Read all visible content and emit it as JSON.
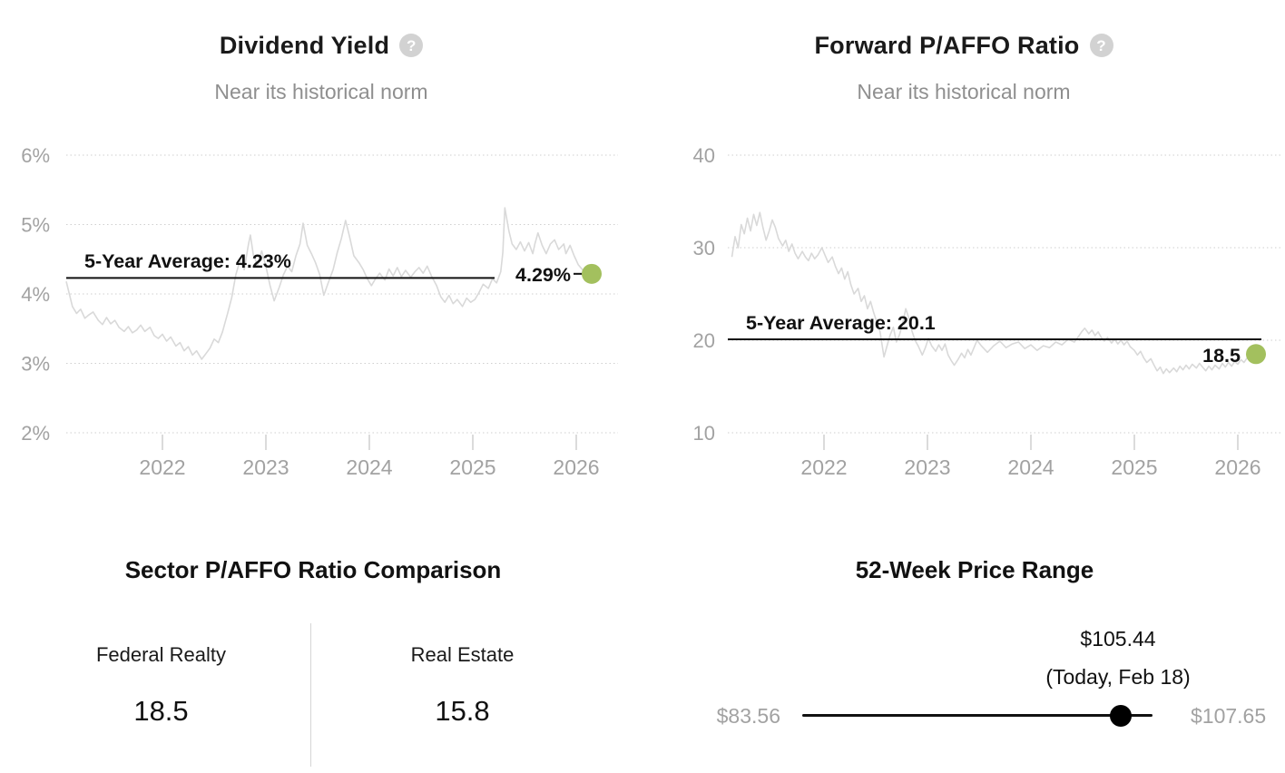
{
  "colors": {
    "accent_green": "#a3c05e",
    "series_gray": "#d9d9d9",
    "grid_gray": "#cfcfcf",
    "axis_label_gray": "#a2a2a2",
    "text_dark": "#1a1a1a"
  },
  "chart_data": [
    {
      "type": "line",
      "title": "Dividend Yield",
      "subtitle": "Near its historical norm",
      "help_glyph": "?",
      "ylim": [
        2,
        6
      ],
      "xlim": [
        2021.07,
        2026.13
      ],
      "grid": "dotted-horizontal",
      "legend": "none",
      "y_ticks": [
        {
          "value": 6,
          "label": "6%"
        },
        {
          "value": 5,
          "label": "5%"
        },
        {
          "value": 4,
          "label": "4%"
        },
        {
          "value": 3,
          "label": "3%"
        },
        {
          "value": 2,
          "label": "2%"
        }
      ],
      "x_ticks": [
        {
          "value": 2022,
          "label": "2022"
        },
        {
          "value": 2023,
          "label": "2023"
        },
        {
          "value": 2024,
          "label": "2024"
        },
        {
          "value": 2025,
          "label": "2025"
        },
        {
          "value": 2026,
          "label": "2026"
        }
      ],
      "average": {
        "value": 4.23,
        "label": "5-Year Average: 4.23%"
      },
      "current": {
        "value": 4.29,
        "label": "4.29%"
      },
      "line_color": "#d9d9d9",
      "dot_color": "#a3c05e",
      "x": [
        2021.07,
        2021.1,
        2021.13,
        2021.17,
        2021.21,
        2021.25,
        2021.29,
        2021.33,
        2021.38,
        2021.42,
        2021.46,
        2021.5,
        2021.54,
        2021.58,
        2021.63,
        2021.67,
        2021.71,
        2021.75,
        2021.79,
        2021.83,
        2021.88,
        2021.92,
        2021.96,
        2022.0,
        2022.04,
        2022.08,
        2022.13,
        2022.17,
        2022.21,
        2022.25,
        2022.29,
        2022.33,
        2022.38,
        2022.42,
        2022.46,
        2022.5,
        2022.54,
        2022.58,
        2022.63,
        2022.67,
        2022.71,
        2022.75,
        2022.79,
        2022.83,
        2022.85,
        2022.88,
        2022.92,
        2022.96,
        2023.0,
        2023.04,
        2023.08,
        2023.13,
        2023.17,
        2023.21,
        2023.25,
        2023.29,
        2023.33,
        2023.36,
        2023.4,
        2023.44,
        2023.48,
        2023.52,
        2023.56,
        2023.6,
        2023.65,
        2023.69,
        2023.73,
        2023.77,
        2023.81,
        2023.85,
        2023.9,
        2023.94,
        2023.98,
        2024.02,
        2024.06,
        2024.1,
        2024.15,
        2024.19,
        2024.23,
        2024.27,
        2024.31,
        2024.35,
        2024.4,
        2024.44,
        2024.48,
        2024.52,
        2024.56,
        2024.6,
        2024.65,
        2024.69,
        2024.73,
        2024.77,
        2024.81,
        2024.85,
        2024.9,
        2024.94,
        2024.98,
        2025.02,
        2025.06,
        2025.1,
        2025.15,
        2025.19,
        2025.23,
        2025.27,
        2025.29,
        2025.31,
        2025.35,
        2025.38,
        2025.42,
        2025.46,
        2025.5,
        2025.54,
        2025.58,
        2025.6,
        2025.63,
        2025.67,
        2025.71,
        2025.75,
        2025.79,
        2025.83,
        2025.88,
        2025.9,
        2025.94,
        2025.98,
        2026.02,
        2026.06,
        2026.1,
        2026.13
      ],
      "values": [
        4.18,
        4.0,
        3.82,
        3.72,
        3.78,
        3.65,
        3.7,
        3.74,
        3.62,
        3.56,
        3.66,
        3.57,
        3.62,
        3.52,
        3.46,
        3.53,
        3.44,
        3.48,
        3.55,
        3.46,
        3.52,
        3.4,
        3.36,
        3.42,
        3.32,
        3.38,
        3.25,
        3.3,
        3.18,
        3.24,
        3.12,
        3.18,
        3.06,
        3.14,
        3.22,
        3.35,
        3.3,
        3.45,
        3.72,
        3.95,
        4.28,
        4.48,
        4.35,
        4.7,
        4.85,
        4.55,
        4.42,
        4.62,
        4.4,
        4.12,
        3.9,
        4.1,
        4.28,
        4.4,
        4.32,
        4.55,
        4.72,
        5.02,
        4.7,
        4.58,
        4.45,
        4.28,
        3.98,
        4.15,
        4.35,
        4.6,
        4.8,
        5.06,
        4.82,
        4.55,
        4.45,
        4.35,
        4.22,
        4.12,
        4.22,
        4.3,
        4.2,
        4.36,
        4.26,
        4.38,
        4.25,
        4.34,
        4.24,
        4.32,
        4.38,
        4.3,
        4.4,
        4.26,
        4.12,
        3.96,
        3.88,
        3.98,
        3.86,
        3.92,
        3.82,
        3.94,
        3.88,
        3.92,
        4.02,
        4.14,
        4.08,
        4.22,
        4.16,
        4.32,
        4.6,
        5.24,
        4.9,
        4.72,
        4.64,
        4.75,
        4.62,
        4.74,
        4.58,
        4.72,
        4.88,
        4.7,
        4.58,
        4.72,
        4.78,
        4.64,
        4.72,
        4.58,
        4.7,
        4.55,
        4.42,
        4.35,
        4.3,
        4.29
      ]
    },
    {
      "type": "line",
      "title": "Forward P/AFFO Ratio",
      "subtitle": "Near its historical norm",
      "help_glyph": "?",
      "ylim": [
        10,
        40
      ],
      "xlim": [
        2021.11,
        2026.13
      ],
      "grid": "dotted-horizontal",
      "legend": "none",
      "y_ticks": [
        {
          "value": 40,
          "label": "40"
        },
        {
          "value": 30,
          "label": "30"
        },
        {
          "value": 20,
          "label": "20"
        },
        {
          "value": 10,
          "label": "10"
        }
      ],
      "x_ticks": [
        {
          "value": 2022,
          "label": "2022"
        },
        {
          "value": 2023,
          "label": "2023"
        },
        {
          "value": 2024,
          "label": "2024"
        },
        {
          "value": 2025,
          "label": "2025"
        },
        {
          "value": 2026,
          "label": "2026"
        }
      ],
      "average": {
        "value": 20.1,
        "label": "5-Year Average: 20.1"
      },
      "current": {
        "value": 18.5,
        "label": "18.5"
      },
      "line_color": "#d9d9d9",
      "dot_color": "#a3c05e",
      "x": [
        2021.11,
        2021.14,
        2021.17,
        2021.2,
        2021.23,
        2021.26,
        2021.29,
        2021.32,
        2021.35,
        2021.38,
        2021.41,
        2021.44,
        2021.47,
        2021.5,
        2021.53,
        2021.56,
        2021.6,
        2021.63,
        2021.66,
        2021.69,
        2021.72,
        2021.75,
        2021.79,
        2021.82,
        2021.85,
        2021.88,
        2021.91,
        2021.94,
        2021.98,
        2022.01,
        2022.04,
        2022.08,
        2022.11,
        2022.14,
        2022.17,
        2022.2,
        2022.23,
        2022.26,
        2022.29,
        2022.33,
        2022.36,
        2022.39,
        2022.42,
        2022.45,
        2022.48,
        2022.51,
        2022.54,
        2022.58,
        2022.61,
        2022.64,
        2022.67,
        2022.7,
        2022.73,
        2022.76,
        2022.79,
        2022.82,
        2022.85,
        2022.88,
        2022.91,
        2022.95,
        2022.98,
        2023.01,
        2023.04,
        2023.08,
        2023.11,
        2023.14,
        2023.17,
        2023.2,
        2023.23,
        2023.26,
        2023.3,
        2023.33,
        2023.36,
        2023.39,
        2023.42,
        2023.45,
        2023.48,
        2023.52,
        2023.58,
        2023.64,
        2023.7,
        2023.76,
        2023.82,
        2023.88,
        2023.94,
        2024.0,
        2024.06,
        2024.12,
        2024.18,
        2024.24,
        2024.3,
        2024.36,
        2024.42,
        2024.46,
        2024.49,
        2024.52,
        2024.56,
        2024.59,
        2024.62,
        2024.65,
        2024.68,
        2024.71,
        2024.74,
        2024.78,
        2024.81,
        2024.84,
        2024.87,
        2024.9,
        2024.93,
        2024.96,
        2025.0,
        2025.03,
        2025.06,
        2025.09,
        2025.12,
        2025.16,
        2025.19,
        2025.22,
        2025.25,
        2025.28,
        2025.31,
        2025.34,
        2025.38,
        2025.41,
        2025.44,
        2025.47,
        2025.5,
        2025.53,
        2025.56,
        2025.6,
        2025.63,
        2025.66,
        2025.69,
        2025.72,
        2025.75,
        2025.78,
        2025.82,
        2025.85,
        2025.88,
        2025.91,
        2025.94,
        2025.97,
        2026.0,
        2026.03,
        2026.06,
        2026.09,
        2026.13
      ],
      "values": [
        29.0,
        31.2,
        30.0,
        32.5,
        31.5,
        33.2,
        31.8,
        33.6,
        32.4,
        33.8,
        32.2,
        30.8,
        31.8,
        33.0,
        32.2,
        31.0,
        30.2,
        30.8,
        29.6,
        30.4,
        29.4,
        28.8,
        29.6,
        29.0,
        28.6,
        29.4,
        28.8,
        29.2,
        30.0,
        29.2,
        28.4,
        29.0,
        28.0,
        27.2,
        27.8,
        26.6,
        27.4,
        26.0,
        25.0,
        25.6,
        24.2,
        24.8,
        23.4,
        24.2,
        23.0,
        22.0,
        21.0,
        18.2,
        19.4,
        20.6,
        21.4,
        19.8,
        20.6,
        21.8,
        23.4,
        22.4,
        21.0,
        20.0,
        19.4,
        18.4,
        19.2,
        20.2,
        19.4,
        18.8,
        19.5,
        18.9,
        19.6,
        18.4,
        17.8,
        17.3,
        18.0,
        18.6,
        18.1,
        19.0,
        18.4,
        19.2,
        20.0,
        19.4,
        18.7,
        19.4,
        19.9,
        19.2,
        19.6,
        19.8,
        19.1,
        19.5,
        18.9,
        19.4,
        19.2,
        19.8,
        19.5,
        20.1,
        19.8,
        20.4,
        20.9,
        21.3,
        20.7,
        21.1,
        20.5,
        20.9,
        20.3,
        19.9,
        20.3,
        19.7,
        20.1,
        19.6,
        20.0,
        19.5,
        19.9,
        19.3,
        18.9,
        18.4,
        18.8,
        18.1,
        17.6,
        18.0,
        17.3,
        16.7,
        17.1,
        16.4,
        16.9,
        16.5,
        17.0,
        16.6,
        17.2,
        16.8,
        17.3,
        16.9,
        17.4,
        17.0,
        17.5,
        17.1,
        16.7,
        17.2,
        16.8,
        17.3,
        16.9,
        17.5,
        17.1,
        17.6,
        17.2,
        17.7,
        17.4,
        17.9,
        17.6,
        18.1,
        18.5
      ]
    }
  ],
  "sector_comparison": {
    "title": "Sector P/AFFO Ratio Comparison",
    "columns": [
      {
        "label": "Federal Realty",
        "value": "18.5"
      },
      {
        "label": "Real Estate",
        "value": "15.8"
      }
    ]
  },
  "price_range": {
    "title": "52-Week Price Range",
    "current_label": "$105.44",
    "current_note": "(Today, Feb 18)",
    "low_label": "$83.56",
    "high_label": "$107.65",
    "low": 83.56,
    "high": 107.65,
    "current": 105.44
  }
}
